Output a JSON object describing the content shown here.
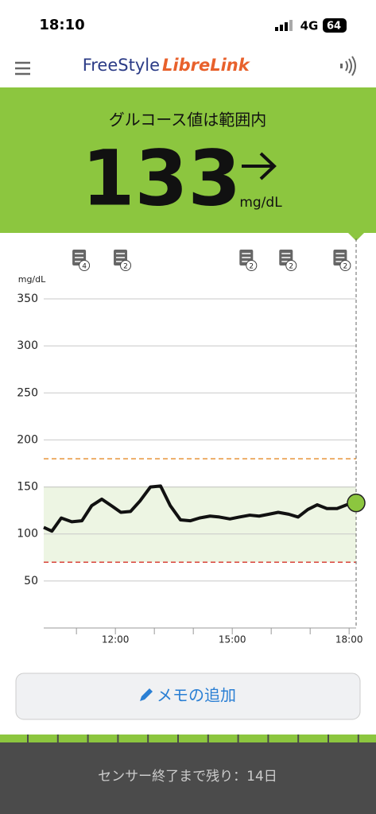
{
  "status_bar": {
    "time": "18:10",
    "network": "4G",
    "battery": "64"
  },
  "header": {
    "brand_a": "FreeStyle",
    "brand_b": "LibreLink"
  },
  "reading": {
    "label": "グルコース値は範囲内",
    "value": "133",
    "unit": "mg/dL"
  },
  "chart_data": {
    "type": "line",
    "y_label": "mg/dL",
    "x": [
      10.16,
      10.37,
      10.61,
      10.88,
      11.14,
      11.39,
      11.65,
      11.9,
      12.14,
      12.39,
      12.63,
      12.9,
      13.16,
      13.41,
      13.67,
      13.92,
      14.16,
      14.43,
      14.67,
      14.94,
      15.18,
      15.45,
      15.69,
      15.94,
      16.18,
      16.45,
      16.69,
      16.94,
      17.18,
      17.43,
      17.69,
      17.94,
      18.18
    ],
    "series": [
      {
        "color": "#111111",
        "values": [
          107,
          103,
          117,
          113,
          114,
          130,
          137,
          130,
          123,
          124,
          135,
          150,
          151,
          130,
          115,
          114,
          117,
          119,
          118,
          116,
          118,
          120,
          119,
          121,
          123,
          121,
          118,
          126,
          131,
          127,
          127,
          131,
          133
        ]
      }
    ],
    "xlim": [
      10.16,
      18.18
    ],
    "ylim": [
      0,
      350
    ],
    "xticks": [
      {
        "value": 12,
        "label": "12:00"
      },
      {
        "value": 15,
        "label": "15:00"
      },
      {
        "value": 18,
        "label": "18:00"
      }
    ],
    "x_minor_ticks": [
      11,
      13,
      14,
      16,
      17
    ],
    "yticks": [
      50,
      100,
      150,
      200,
      250,
      300,
      350
    ],
    "grid": true,
    "target_range": [
      70,
      150
    ],
    "target_color": "#edf5e3",
    "high_line": 180,
    "high_color": "#e8953a",
    "low_line": 70,
    "low_color": "#d9443a",
    "current_color": "#8cc63f",
    "notes": [
      {
        "x": 11.08,
        "count": 4
      },
      {
        "x": 12.14,
        "count": 2
      },
      {
        "x": 15.37,
        "count": 2
      },
      {
        "x": 16.39,
        "count": 2
      },
      {
        "x": 17.78,
        "count": 2
      }
    ]
  },
  "memo_button": {
    "label": "メモの追加"
  },
  "footer": {
    "text": "センサー終了まで残り：14日"
  }
}
